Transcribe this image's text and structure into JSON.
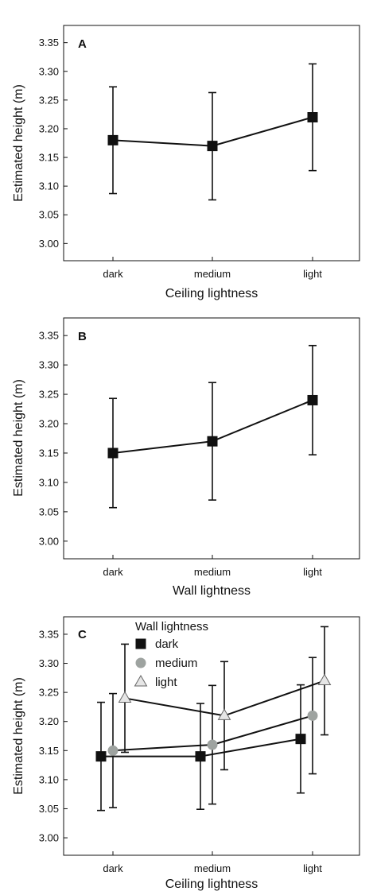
{
  "chart_data": [
    {
      "type": "line",
      "panel_label": "A",
      "categories": [
        "dark",
        "medium",
        "light"
      ],
      "xlabel": "Ceiling lightness",
      "ylabel": "Estimated height (m)",
      "ylim": [
        2.97,
        3.38
      ],
      "yticks": [
        "3.00",
        "3.05",
        "3.10",
        "3.15",
        "3.20",
        "3.25",
        "3.30",
        "3.35"
      ],
      "grid": false,
      "series": [
        {
          "marker": "square",
          "color": "#111111",
          "values": [
            3.18,
            3.17,
            3.22
          ],
          "err_low": [
            3.087,
            3.076,
            3.127
          ],
          "err_high": [
            3.273,
            3.263,
            3.313
          ]
        }
      ]
    },
    {
      "type": "line",
      "panel_label": "B",
      "categories": [
        "dark",
        "medium",
        "light"
      ],
      "xlabel": "Wall lightness",
      "ylabel": "Estimated height (m)",
      "ylim": [
        2.97,
        3.38
      ],
      "yticks": [
        "3.00",
        "3.05",
        "3.10",
        "3.15",
        "3.20",
        "3.25",
        "3.30",
        "3.35"
      ],
      "grid": false,
      "series": [
        {
          "marker": "square",
          "color": "#111111",
          "values": [
            3.15,
            3.17,
            3.24
          ],
          "err_low": [
            3.057,
            3.07,
            3.147
          ],
          "err_high": [
            3.243,
            3.27,
            3.333
          ]
        }
      ]
    },
    {
      "type": "line",
      "panel_label": "C",
      "categories": [
        "dark",
        "medium",
        "light"
      ],
      "xlabel": "Ceiling lightness",
      "ylabel": "Estimated height (m)",
      "ylim": [
        2.97,
        3.38
      ],
      "yticks": [
        "3.00",
        "3.05",
        "3.10",
        "3.15",
        "3.20",
        "3.25",
        "3.30",
        "3.35"
      ],
      "grid": false,
      "legend_title": "Wall lightness",
      "legend_position": "top-left",
      "series": [
        {
          "name": "dark",
          "marker": "square",
          "color": "#111111",
          "offset": -0.12,
          "values": [
            3.14,
            3.14,
            3.17
          ],
          "err_low": [
            3.047,
            3.049,
            3.077
          ],
          "err_high": [
            3.233,
            3.231,
            3.263
          ]
        },
        {
          "name": "medium",
          "marker": "circle",
          "color": "#9ea3a0",
          "offset": 0.0,
          "values": [
            3.15,
            3.16,
            3.21
          ],
          "err_low": [
            3.052,
            3.058,
            3.11
          ],
          "err_high": [
            3.248,
            3.262,
            3.31
          ]
        },
        {
          "name": "light",
          "marker": "triangle",
          "color": "#e6e6e6",
          "offset": 0.12,
          "values": [
            3.24,
            3.21,
            3.27
          ],
          "err_low": [
            3.147,
            3.117,
            3.177
          ],
          "err_high": [
            3.333,
            3.303,
            3.363
          ]
        }
      ]
    }
  ]
}
